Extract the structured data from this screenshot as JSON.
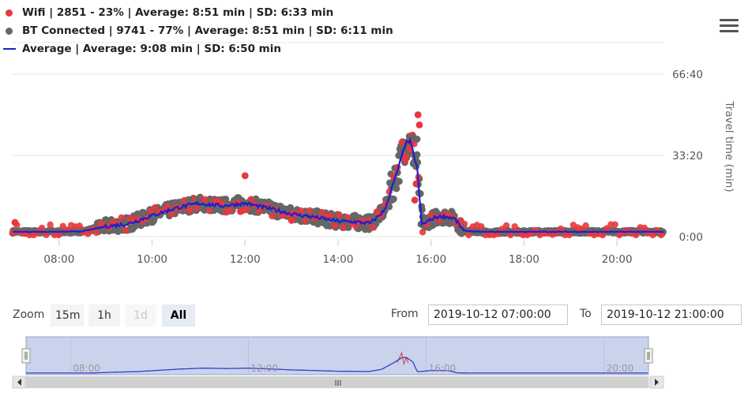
{
  "legend": [
    {
      "label": "Wifi | 2851 - 23% | Average: 8:51 min | SD: 6:33 min",
      "color": "#e8383d",
      "kind": "dot"
    },
    {
      "label": "BT Connected | 9741 - 77% | Average: 8:51 min | SD: 6:11 min",
      "color": "#666666",
      "kind": "dot"
    },
    {
      "label": "Average | Average: 9:08 min | SD: 6:50 min",
      "color": "#1e1ed0",
      "kind": "line"
    }
  ],
  "navigator": {
    "zoom_label": "Zoom",
    "buttons": [
      {
        "label": "15m",
        "state": "normal"
      },
      {
        "label": "1h",
        "state": "normal"
      },
      {
        "label": "1d",
        "state": "disabled"
      },
      {
        "label": "All",
        "state": "active"
      }
    ],
    "from_label": "From",
    "from_value": "2019-10-12 07:00:00",
    "to_label": "To",
    "to_value": "2019-10-12 21:00:00",
    "scrollbar_grip": "III"
  },
  "chart_data": {
    "type": "scatter",
    "title": "",
    "xlabel": "",
    "ylabel": "Travel time (min)",
    "x_range_hours": [
      7,
      21
    ],
    "y_range_seconds": [
      0,
      4700
    ],
    "x_ticks": [
      "08:00",
      "10:00",
      "12:00",
      "14:00",
      "16:00",
      "18:00",
      "20:00"
    ],
    "x_tick_hours": [
      8,
      10,
      12,
      14,
      16,
      18,
      20
    ],
    "y_ticks": [
      "0:00",
      "33:20",
      "66:40"
    ],
    "y_tick_seconds": [
      0,
      2000,
      4000
    ],
    "grid": true,
    "legend_position": "top-left",
    "series": [
      {
        "name": "Average",
        "type": "line",
        "color": "#1e1ed0",
        "points": [
          [
            7.0,
            120
          ],
          [
            8.0,
            120
          ],
          [
            8.5,
            130
          ],
          [
            9.0,
            250
          ],
          [
            9.5,
            320
          ],
          [
            10.0,
            520
          ],
          [
            10.5,
            700
          ],
          [
            11.0,
            820
          ],
          [
            11.5,
            760
          ],
          [
            12.0,
            820
          ],
          [
            12.5,
            700
          ],
          [
            13.0,
            560
          ],
          [
            13.5,
            480
          ],
          [
            14.0,
            380
          ],
          [
            14.4,
            360
          ],
          [
            14.7,
            330
          ],
          [
            15.0,
            650
          ],
          [
            15.3,
            1700
          ],
          [
            15.45,
            2300
          ],
          [
            15.55,
            2350
          ],
          [
            15.7,
            1700
          ],
          [
            15.8,
            300
          ],
          [
            16.1,
            480
          ],
          [
            16.3,
            500
          ],
          [
            16.5,
            450
          ],
          [
            16.7,
            150
          ],
          [
            17.0,
            120
          ],
          [
            18.0,
            120
          ],
          [
            19.0,
            120
          ],
          [
            20.0,
            120
          ],
          [
            21.0,
            120
          ]
        ]
      },
      {
        "name": "BT Connected",
        "type": "scatter",
        "color": "#666666",
        "envelope": [
          [
            7.0,
            120
          ],
          [
            8.0,
            120
          ],
          [
            8.5,
            130
          ],
          [
            9.0,
            250
          ],
          [
            9.5,
            320
          ],
          [
            10.0,
            520
          ],
          [
            10.5,
            700
          ],
          [
            11.0,
            820
          ],
          [
            11.5,
            760
          ],
          [
            12.0,
            820
          ],
          [
            12.5,
            700
          ],
          [
            13.0,
            560
          ],
          [
            13.5,
            480
          ],
          [
            14.0,
            380
          ],
          [
            14.4,
            360
          ],
          [
            14.7,
            330
          ],
          [
            15.0,
            650
          ],
          [
            15.3,
            1700
          ],
          [
            15.45,
            2300
          ],
          [
            15.55,
            2350
          ],
          [
            15.7,
            1700
          ],
          [
            15.8,
            300
          ],
          [
            16.1,
            480
          ],
          [
            16.3,
            500
          ],
          [
            16.5,
            450
          ],
          [
            16.7,
            150
          ],
          [
            17.0,
            120
          ],
          [
            18.0,
            120
          ],
          [
            19.0,
            120
          ],
          [
            20.0,
            120
          ],
          [
            21.0,
            120
          ]
        ]
      },
      {
        "name": "Wifi",
        "type": "scatter",
        "color": "#e8383d",
        "highlights": [
          [
            7.05,
            350
          ],
          [
            10.8,
            650
          ],
          [
            11.9,
            620
          ],
          [
            12.0,
            1500
          ],
          [
            15.45,
            1900
          ],
          [
            15.55,
            2150
          ],
          [
            15.6,
            2500
          ],
          [
            15.72,
            3000
          ],
          [
            15.75,
            2750
          ],
          [
            15.68,
            1300
          ],
          [
            15.65,
            900
          ],
          [
            13.0,
            400
          ]
        ]
      }
    ]
  }
}
